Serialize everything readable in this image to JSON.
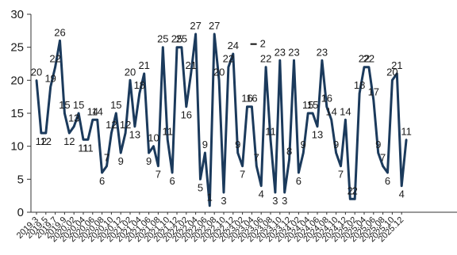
{
  "chart_data": {
    "type": "line",
    "title": "",
    "xlabel": "",
    "ylabel": "",
    "ylim": [
      0,
      30
    ],
    "y_ticks": [
      "0",
      "5",
      "10",
      "15",
      "20",
      "25",
      "30"
    ],
    "grid": false,
    "legend": "none",
    "line_color": "#1b3a5c",
    "x_tick_labels": [
      "2019.3",
      "2019.5",
      "2019.7",
      "2019.9",
      "2020.02",
      "2020.04",
      "2020.06",
      "2020.08",
      "2020.10",
      "2020.12",
      "2021.02",
      "2021.04",
      "2021.06",
      "2021.08",
      "2021.10",
      "2021.12",
      "2022.02",
      "2022.04",
      "2022.06",
      "2022.08",
      "2022.10",
      "2022.12",
      "2023.02",
      "2023.04",
      "2023.06",
      "2023.08",
      "2023.10",
      "2023.12",
      "2024.02",
      "2024.04",
      "2024.06",
      "2024.08",
      "2024.10",
      "2024.12",
      "2025.02",
      "2025.04",
      "2025.06",
      "2025.08",
      "2025.10",
      "2025.12"
    ],
    "series": [
      {
        "values": [
          20,
          12,
          12,
          19,
          22,
          26,
          15,
          12,
          13,
          15,
          11,
          11,
          14,
          14,
          6,
          7,
          12,
          15,
          9,
          12,
          20,
          13,
          18,
          21,
          9,
          10,
          7,
          25,
          11,
          6,
          25,
          25,
          16,
          21,
          27,
          5,
          9,
          1,
          27,
          20,
          3,
          22,
          24,
          9,
          7,
          16,
          16,
          7,
          4,
          22,
          11,
          3,
          23,
          3,
          8,
          23,
          6,
          9,
          15,
          15,
          13,
          23,
          16,
          14,
          9,
          7,
          14,
          2,
          2,
          18,
          22,
          22,
          17,
          9,
          7,
          6,
          20,
          21,
          4,
          11
        ],
        "point_labels": [
          "20",
          "12",
          "12",
          "19",
          "22",
          "26",
          "15",
          "12",
          "13",
          "15",
          "11",
          "11",
          "14",
          "14",
          "6",
          "7",
          "12",
          "15",
          "9",
          "12",
          "20",
          "13",
          "18",
          "21",
          "9",
          "10",
          "7",
          "25",
          "11",
          "6",
          "25",
          "25",
          "16",
          "21",
          "27",
          "5",
          "9",
          "1",
          "27",
          "20",
          "3",
          "22",
          "24",
          "9",
          "7",
          "16",
          "16",
          "7",
          "4",
          "22",
          "11",
          "3",
          "23",
          "3",
          "8",
          "23",
          "6",
          "9",
          "15",
          "15",
          "13",
          "23",
          "16",
          "14",
          "9",
          "7",
          "14",
          "2",
          "2",
          "18",
          "22",
          "22",
          "17",
          "9",
          "7",
          "6",
          "20",
          "21",
          "4",
          "11"
        ]
      }
    ],
    "extra_labels": [
      "2"
    ]
  }
}
